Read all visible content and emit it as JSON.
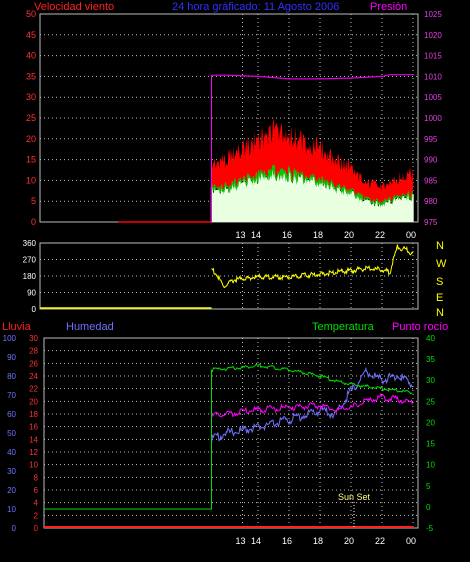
{
  "header": {
    "wind_title": "Velocidad viento",
    "period_title": "24 hora gráficado: 11 Agosto 2006",
    "pressure_title": "Presión"
  },
  "compass": [
    "N",
    "W",
    "S",
    "E",
    "N"
  ],
  "lower_header": {
    "rain": "Lluvia",
    "humidity": "Humedad",
    "temperature": "Temperatura",
    "dewpoint": "Punto rocío"
  },
  "annotation": "Sun Set",
  "colors": {
    "wind_max": "#ff0000",
    "wind_avg": "#00c800",
    "wind_min": "#e8ffe0",
    "pressure": "#e000e0",
    "direction": "#ffff00",
    "rain": "#ff2020",
    "humidity": "#7070ff",
    "temperature": "#00dd00",
    "dewpoint": "#ff00ff",
    "grid": "#c0c0c0"
  },
  "chart_data": [
    {
      "type": "line",
      "title": "Velocidad viento / Presión",
      "x_tick_labels": [
        "13",
        "14",
        "16",
        "18",
        "20",
        "22",
        "00"
      ],
      "ylim": [
        0,
        50
      ],
      "y_ticks": [
        0,
        5,
        10,
        15,
        20,
        25,
        30,
        35,
        40,
        45,
        50
      ],
      "y2lim": [
        975,
        1025
      ],
      "y2_ticks": [
        975,
        980,
        985,
        990,
        995,
        1000,
        1005,
        1010,
        1015,
        1020,
        1025
      ],
      "data_start_hour": 11.0,
      "series": [
        {
          "name": "Velocidad viento",
          "axis": "left",
          "x": [
            11.0,
            12.0,
            13.0,
            14.0,
            15.0,
            16.0,
            17.0,
            18.0,
            19.0,
            20.0,
            21.0,
            22.0,
            23.0,
            24.0
          ],
          "values": [
            12,
            13,
            15,
            17,
            19,
            18,
            16,
            15,
            13,
            11,
            8,
            7,
            9,
            10
          ]
        },
        {
          "name": "Presión",
          "axis": "right",
          "x": [
            11.0,
            12.0,
            14.0,
            16.0,
            18.0,
            20.0,
            22.0,
            22.5,
            24.0
          ],
          "values": [
            1010.3,
            1010.3,
            1010.0,
            1009.4,
            1009.4,
            1009.6,
            1010.0,
            1010.4,
            1010.4
          ]
        }
      ]
    },
    {
      "type": "line",
      "title": "Dirección viento",
      "x_tick_labels": [],
      "ylim": [
        0,
        360
      ],
      "y_ticks": [
        0,
        90,
        180,
        270,
        360
      ],
      "series": [
        {
          "name": "Dirección",
          "x": [
            11.0,
            11.3,
            11.8,
            12.5,
            14.0,
            16.0,
            18.0,
            19.0,
            20.0,
            21.0,
            22.0,
            22.5,
            23.0,
            23.3,
            23.5,
            24.0
          ],
          "values": [
            220,
            190,
            120,
            160,
            175,
            175,
            190,
            200,
            210,
            220,
            215,
            200,
            340,
            320,
            330,
            300
          ]
        }
      ]
    },
    {
      "type": "line",
      "title": "Lluvia / Humedad / Temperatura / Punto rocío",
      "x_tick_labels": [
        "13",
        "14",
        "16",
        "18",
        "20",
        "22",
        "00"
      ],
      "rain_ylim": [
        0,
        30
      ],
      "rain_ticks": [
        0,
        2,
        4,
        6,
        8,
        10,
        12,
        14,
        16,
        18,
        20,
        22,
        24,
        26,
        28,
        30
      ],
      "humidity_ylim": [
        0,
        100
      ],
      "humidity_ticks": [
        0,
        10,
        20,
        30,
        40,
        50,
        60,
        70,
        80,
        90,
        100
      ],
      "temp_ylim": [
        -5,
        40
      ],
      "temp_ticks": [
        -5,
        0,
        5,
        10,
        15,
        20,
        25,
        30,
        35,
        40
      ],
      "series": [
        {
          "name": "Lluvia",
          "axis": "rain",
          "x": [
            5.0,
            24.0
          ],
          "values": [
            0,
            0
          ]
        },
        {
          "name": "Humedad",
          "axis": "humidity",
          "x": [
            5.0,
            11.0,
            11.0,
            12.0,
            14.0,
            16.0,
            18.0,
            19.0,
            20.0,
            21.0,
            22.0,
            23.0,
            24.0
          ],
          "values": [
            10,
            10,
            47,
            50,
            53,
            57,
            62,
            60,
            72,
            82,
            78,
            80,
            76
          ]
        },
        {
          "name": "Temperatura",
          "axis": "temp",
          "x": [
            5.0,
            11.0,
            11.0,
            13.0,
            14.0,
            16.0,
            18.0,
            19.0,
            20.0,
            21.0,
            22.0,
            23.0,
            24.0
          ],
          "values": [
            -0.5,
            -0.5,
            32.5,
            33.0,
            33.5,
            32.5,
            31.0,
            29.8,
            29.0,
            28.5,
            28.0,
            27.5,
            27.0
          ]
        },
        {
          "name": "Punto rocío",
          "axis": "temp",
          "x": [
            11.0,
            12.0,
            14.0,
            16.0,
            18.0,
            19.0,
            20.0,
            21.0,
            22.0,
            23.0,
            24.0
          ],
          "values": [
            21.5,
            22.0,
            23.0,
            23.5,
            24.0,
            23.0,
            23.5,
            25.0,
            26.0,
            25.5,
            24.5
          ]
        }
      ]
    }
  ]
}
